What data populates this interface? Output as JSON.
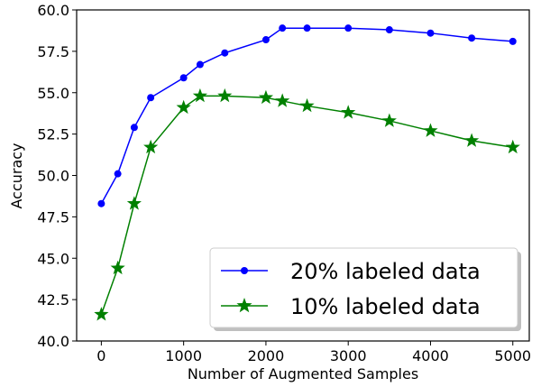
{
  "chart_data": {
    "type": "line",
    "title": "",
    "xlabel": "Number of Augmented Samples",
    "ylabel": "Accuracy",
    "xlim": [
      -300,
      5200
    ],
    "ylim": [
      40.0,
      60.0
    ],
    "xticks": [
      0,
      1000,
      2000,
      3000,
      4000,
      5000
    ],
    "yticks": [
      40.0,
      42.5,
      45.0,
      47.5,
      50.0,
      52.5,
      55.0,
      57.5,
      60.0
    ],
    "xtick_labels": [
      "0",
      "1000",
      "2000",
      "3000",
      "4000",
      "5000"
    ],
    "ytick_labels": [
      "40.0",
      "42.5",
      "45.0",
      "47.5",
      "50.0",
      "52.5",
      "55.0",
      "57.5",
      "60.0"
    ],
    "grid": false,
    "legend_position": "bottom-right",
    "series": [
      {
        "name": "20% labeled data",
        "color": "#0000ff",
        "marker": "circle",
        "x": [
          0,
          200,
          400,
          600,
          1000,
          1200,
          1500,
          2000,
          2200,
          2500,
          3000,
          3500,
          4000,
          4500,
          5000
        ],
        "y": [
          48.3,
          50.1,
          52.9,
          54.7,
          55.9,
          56.7,
          57.4,
          58.2,
          58.9,
          58.9,
          58.9,
          58.8,
          58.6,
          58.3,
          58.1
        ]
      },
      {
        "name": "10% labeled data",
        "color": "#008000",
        "marker": "star",
        "x": [
          0,
          200,
          400,
          600,
          1000,
          1200,
          1500,
          2000,
          2200,
          2500,
          3000,
          3500,
          4000,
          4500,
          5000
        ],
        "y": [
          41.6,
          44.4,
          48.3,
          51.7,
          54.1,
          54.8,
          54.8,
          54.7,
          54.5,
          54.2,
          53.8,
          53.3,
          52.7,
          52.1,
          51.7
        ]
      }
    ]
  }
}
